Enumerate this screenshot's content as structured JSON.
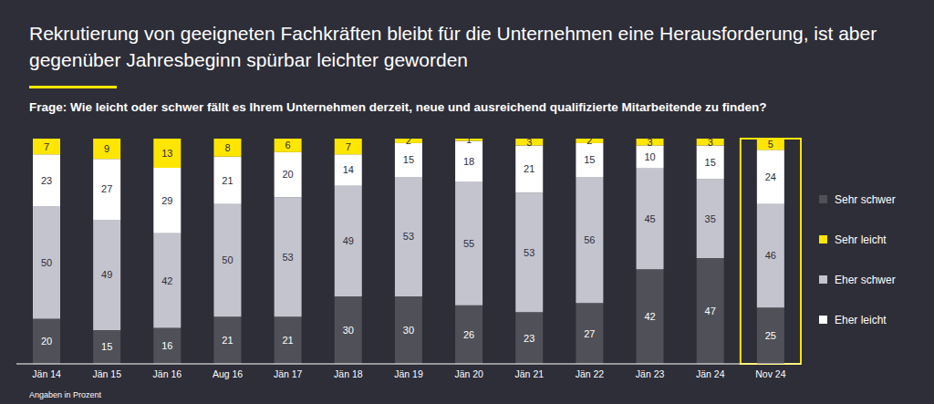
{
  "chart_data": {
    "type": "bar",
    "title": "Rekrutierung von geeigneten Fachkräften bleibt für die Unternehmen eine Herausforderung, ist aber gegenüber Jahresbeginn spürbar leichter geworden",
    "subtitle": "Frage: Wie leicht oder schwer fällt es Ihrem Unternehmen derzeit, neue und ausreichend qualifizierte Mitarbeitende zu finden?",
    "annotations": [
      "Angaben in Prozent"
    ],
    "categories": [
      "Jän 14",
      "Jän 15",
      "Jän 16",
      "Aug 16",
      "Jän 17",
      "Jän 18",
      "Jän 19",
      "Jän 20",
      "Jän 21",
      "Jän 22",
      "Jän 23",
      "Jän 24",
      "Nov 24"
    ],
    "series": [
      {
        "name": "Sehr schwer",
        "color": "#505058",
        "values": [
          20,
          15,
          16,
          21,
          21,
          30,
          30,
          26,
          23,
          27,
          42,
          47,
          25
        ]
      },
      {
        "name": "Eher schwer",
        "color": "#c4c4cf",
        "values": [
          50,
          49,
          42,
          50,
          53,
          49,
          53,
          55,
          53,
          56,
          45,
          35,
          46
        ]
      },
      {
        "name": "Eher leicht",
        "color": "#ffffff",
        "values": [
          23,
          27,
          29,
          21,
          20,
          14,
          15,
          18,
          21,
          15,
          10,
          15,
          24
        ]
      },
      {
        "name": "Sehr leicht",
        "color": "#ffe600",
        "values": [
          7,
          9,
          13,
          8,
          6,
          7,
          2,
          1,
          3,
          2,
          3,
          3,
          5
        ]
      }
    ],
    "ylim": [
      0,
      100
    ],
    "stacked": true,
    "data_labels": true,
    "tick_labels": "x",
    "legend": "right"
  }
}
